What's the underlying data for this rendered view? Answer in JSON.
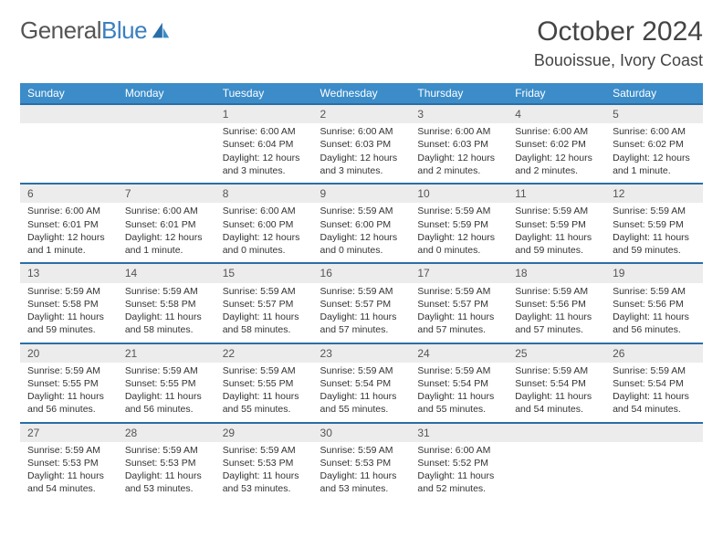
{
  "logo": {
    "general": "General",
    "blue": "Blue"
  },
  "title": "October 2024",
  "location": "Bouoissue, Ivory Coast",
  "header_bg": "#3b8cc9",
  "row_sep": "#2a6ea8",
  "daynum_bg": "#ececec",
  "weekdays": [
    "Sunday",
    "Monday",
    "Tuesday",
    "Wednesday",
    "Thursday",
    "Friday",
    "Saturday"
  ],
  "weeks": [
    [
      null,
      null,
      {
        "n": "1",
        "sr": "Sunrise: 6:00 AM",
        "ss": "Sunset: 6:04 PM",
        "dl": "Daylight: 12 hours and 3 minutes."
      },
      {
        "n": "2",
        "sr": "Sunrise: 6:00 AM",
        "ss": "Sunset: 6:03 PM",
        "dl": "Daylight: 12 hours and 3 minutes."
      },
      {
        "n": "3",
        "sr": "Sunrise: 6:00 AM",
        "ss": "Sunset: 6:03 PM",
        "dl": "Daylight: 12 hours and 2 minutes."
      },
      {
        "n": "4",
        "sr": "Sunrise: 6:00 AM",
        "ss": "Sunset: 6:02 PM",
        "dl": "Daylight: 12 hours and 2 minutes."
      },
      {
        "n": "5",
        "sr": "Sunrise: 6:00 AM",
        "ss": "Sunset: 6:02 PM",
        "dl": "Daylight: 12 hours and 1 minute."
      }
    ],
    [
      {
        "n": "6",
        "sr": "Sunrise: 6:00 AM",
        "ss": "Sunset: 6:01 PM",
        "dl": "Daylight: 12 hours and 1 minute."
      },
      {
        "n": "7",
        "sr": "Sunrise: 6:00 AM",
        "ss": "Sunset: 6:01 PM",
        "dl": "Daylight: 12 hours and 1 minute."
      },
      {
        "n": "8",
        "sr": "Sunrise: 6:00 AM",
        "ss": "Sunset: 6:00 PM",
        "dl": "Daylight: 12 hours and 0 minutes."
      },
      {
        "n": "9",
        "sr": "Sunrise: 5:59 AM",
        "ss": "Sunset: 6:00 PM",
        "dl": "Daylight: 12 hours and 0 minutes."
      },
      {
        "n": "10",
        "sr": "Sunrise: 5:59 AM",
        "ss": "Sunset: 5:59 PM",
        "dl": "Daylight: 12 hours and 0 minutes."
      },
      {
        "n": "11",
        "sr": "Sunrise: 5:59 AM",
        "ss": "Sunset: 5:59 PM",
        "dl": "Daylight: 11 hours and 59 minutes."
      },
      {
        "n": "12",
        "sr": "Sunrise: 5:59 AM",
        "ss": "Sunset: 5:59 PM",
        "dl": "Daylight: 11 hours and 59 minutes."
      }
    ],
    [
      {
        "n": "13",
        "sr": "Sunrise: 5:59 AM",
        "ss": "Sunset: 5:58 PM",
        "dl": "Daylight: 11 hours and 59 minutes."
      },
      {
        "n": "14",
        "sr": "Sunrise: 5:59 AM",
        "ss": "Sunset: 5:58 PM",
        "dl": "Daylight: 11 hours and 58 minutes."
      },
      {
        "n": "15",
        "sr": "Sunrise: 5:59 AM",
        "ss": "Sunset: 5:57 PM",
        "dl": "Daylight: 11 hours and 58 minutes."
      },
      {
        "n": "16",
        "sr": "Sunrise: 5:59 AM",
        "ss": "Sunset: 5:57 PM",
        "dl": "Daylight: 11 hours and 57 minutes."
      },
      {
        "n": "17",
        "sr": "Sunrise: 5:59 AM",
        "ss": "Sunset: 5:57 PM",
        "dl": "Daylight: 11 hours and 57 minutes."
      },
      {
        "n": "18",
        "sr": "Sunrise: 5:59 AM",
        "ss": "Sunset: 5:56 PM",
        "dl": "Daylight: 11 hours and 57 minutes."
      },
      {
        "n": "19",
        "sr": "Sunrise: 5:59 AM",
        "ss": "Sunset: 5:56 PM",
        "dl": "Daylight: 11 hours and 56 minutes."
      }
    ],
    [
      {
        "n": "20",
        "sr": "Sunrise: 5:59 AM",
        "ss": "Sunset: 5:55 PM",
        "dl": "Daylight: 11 hours and 56 minutes."
      },
      {
        "n": "21",
        "sr": "Sunrise: 5:59 AM",
        "ss": "Sunset: 5:55 PM",
        "dl": "Daylight: 11 hours and 56 minutes."
      },
      {
        "n": "22",
        "sr": "Sunrise: 5:59 AM",
        "ss": "Sunset: 5:55 PM",
        "dl": "Daylight: 11 hours and 55 minutes."
      },
      {
        "n": "23",
        "sr": "Sunrise: 5:59 AM",
        "ss": "Sunset: 5:54 PM",
        "dl": "Daylight: 11 hours and 55 minutes."
      },
      {
        "n": "24",
        "sr": "Sunrise: 5:59 AM",
        "ss": "Sunset: 5:54 PM",
        "dl": "Daylight: 11 hours and 55 minutes."
      },
      {
        "n": "25",
        "sr": "Sunrise: 5:59 AM",
        "ss": "Sunset: 5:54 PM",
        "dl": "Daylight: 11 hours and 54 minutes."
      },
      {
        "n": "26",
        "sr": "Sunrise: 5:59 AM",
        "ss": "Sunset: 5:54 PM",
        "dl": "Daylight: 11 hours and 54 minutes."
      }
    ],
    [
      {
        "n": "27",
        "sr": "Sunrise: 5:59 AM",
        "ss": "Sunset: 5:53 PM",
        "dl": "Daylight: 11 hours and 54 minutes."
      },
      {
        "n": "28",
        "sr": "Sunrise: 5:59 AM",
        "ss": "Sunset: 5:53 PM",
        "dl": "Daylight: 11 hours and 53 minutes."
      },
      {
        "n": "29",
        "sr": "Sunrise: 5:59 AM",
        "ss": "Sunset: 5:53 PM",
        "dl": "Daylight: 11 hours and 53 minutes."
      },
      {
        "n": "30",
        "sr": "Sunrise: 5:59 AM",
        "ss": "Sunset: 5:53 PM",
        "dl": "Daylight: 11 hours and 53 minutes."
      },
      {
        "n": "31",
        "sr": "Sunrise: 6:00 AM",
        "ss": "Sunset: 5:52 PM",
        "dl": "Daylight: 11 hours and 52 minutes."
      },
      null,
      null
    ]
  ]
}
